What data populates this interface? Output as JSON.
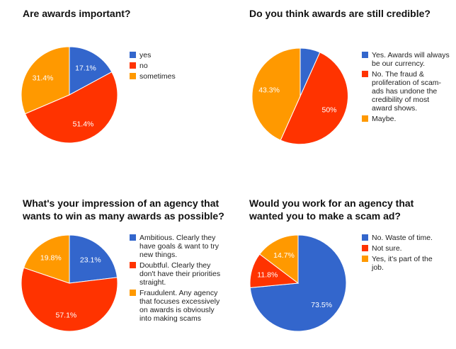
{
  "colors": {
    "blue": "#3366cc",
    "red": "#ff3300",
    "orange": "#ff9900"
  },
  "chart_data": [
    {
      "type": "pie",
      "title": "Are awards important?",
      "categories": [
        "yes",
        "no",
        "sometimes"
      ],
      "values": [
        17.1,
        51.4,
        31.4
      ],
      "labels": [
        "17.1%",
        "51.4%",
        "31.4%"
      ],
      "legend_position": "right"
    },
    {
      "type": "pie",
      "title": "Do you think awards are still credible?",
      "categories": [
        "Yes. Awards will always be our currency.",
        "No. The fraud & proliferation of scam-ads has undone the credibility of most award shows.",
        "Maybe."
      ],
      "values": [
        6.7,
        50,
        43.3
      ],
      "labels": [
        "",
        "50%",
        "43.3%"
      ],
      "legend_position": "right"
    },
    {
      "type": "pie",
      "title": "What's your impression of an agency that wants to win as many awards as possible?",
      "categories": [
        "Ambitious. Clearly they have goals & want to try new things.",
        "Doubtful. Clearly they don't have their priorities straight.",
        "Fraudulent. Any agency that focuses excessively on awards is obviously into making scams"
      ],
      "values": [
        23.1,
        57.1,
        19.8
      ],
      "labels": [
        "23.1%",
        "57.1%",
        "19.8%"
      ],
      "legend_position": "right"
    },
    {
      "type": "pie",
      "title": "Would you work for an agency that wanted you to make a scam ad?",
      "categories": [
        "No. Waste of time.",
        "Not sure.",
        "Yes, it's part of the job."
      ],
      "values": [
        73.5,
        11.8,
        14.7
      ],
      "labels": [
        "73.5%",
        "11.8%",
        "14.7%"
      ],
      "legend_position": "right"
    }
  ]
}
